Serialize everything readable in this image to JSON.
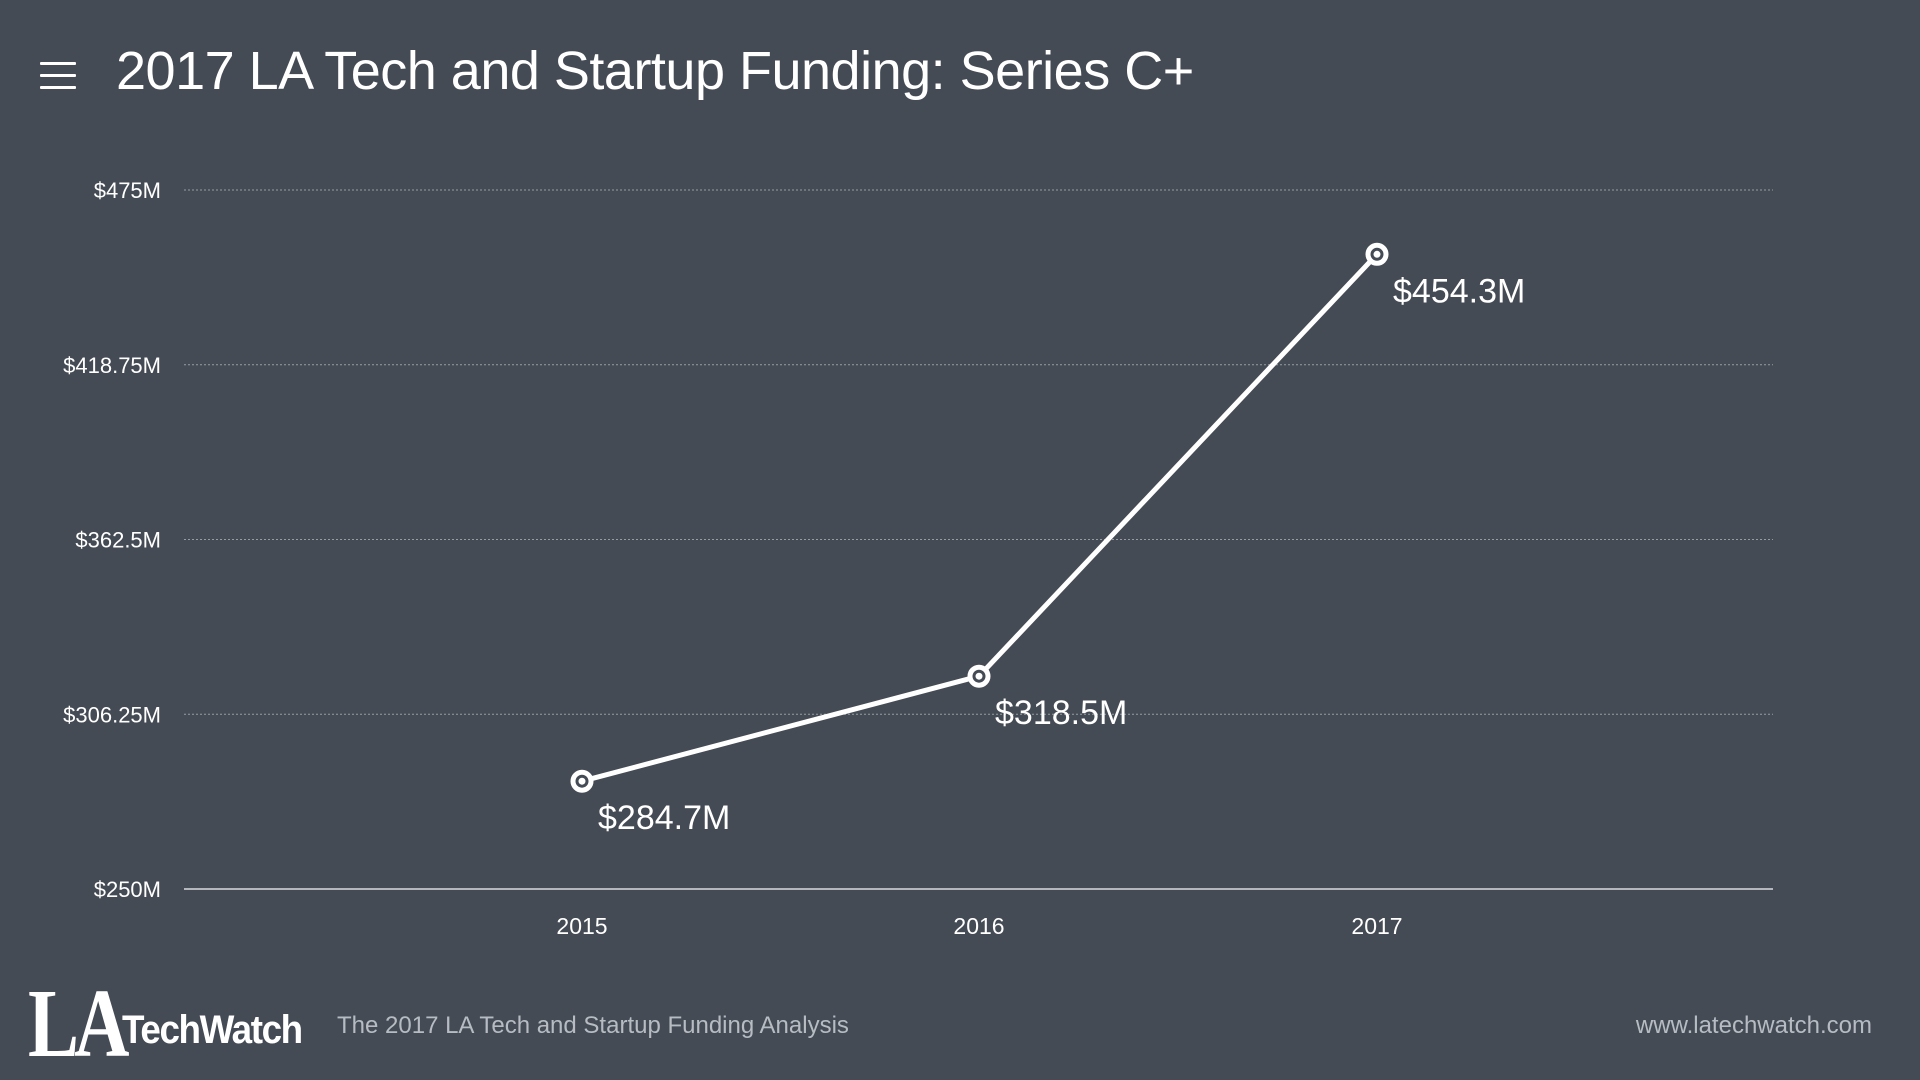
{
  "header": {
    "title": "2017 LA Tech and Startup Funding: Series C+",
    "menu_icon": "hamburger-menu-icon"
  },
  "chart_data": {
    "type": "line",
    "title": "2017 LA Tech and Startup Funding: Series C+",
    "xlabel": "",
    "ylabel": "",
    "categories": [
      "2015",
      "2016",
      "2017"
    ],
    "series": [
      {
        "name": "Series C+ Funding",
        "values": [
          284.7,
          318.5,
          454.3
        ],
        "labels": [
          "$284.7M",
          "$318.5M",
          "$454.3M"
        ]
      }
    ],
    "ylim": [
      250,
      475
    ],
    "yticks": [
      250,
      306.25,
      362.5,
      418.75,
      475
    ],
    "ytick_labels": [
      "$250M",
      "$306.25M",
      "$362.5M",
      "$418.75M",
      "$475M"
    ],
    "grid": true,
    "line_color": "#ffffff",
    "background_color": "#444b54"
  },
  "footer": {
    "logo_la": "LA",
    "logo_techwatch": "TechWatch",
    "caption": "The 2017 LA Tech and Startup Funding Analysis",
    "url": "www.latechwatch.com"
  },
  "colors": {
    "background": "#444b54",
    "foreground": "#ffffff",
    "muted_text": "#b7bcc3",
    "gridline": "#8a9097"
  }
}
